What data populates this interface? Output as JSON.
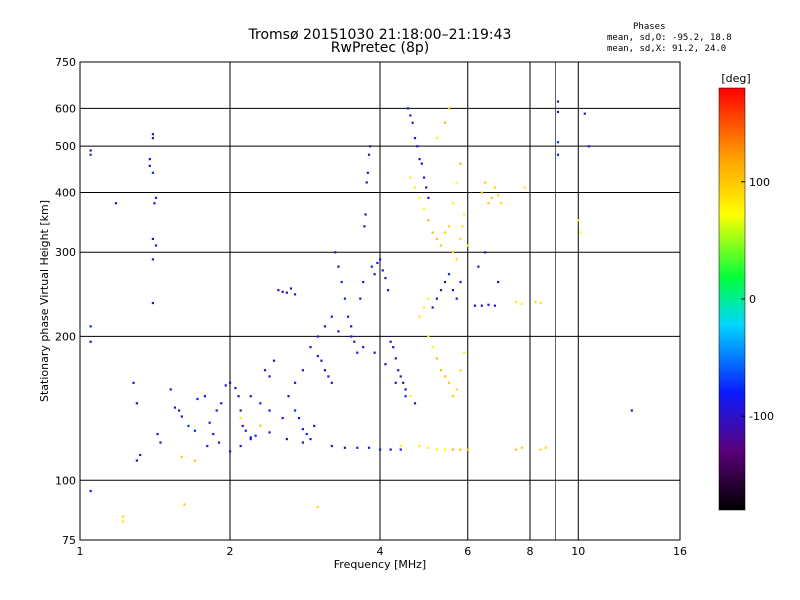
{
  "chart_data": {
    "type": "scatter",
    "title": "Tromsø 20151030 21:18:00–21:19:43",
    "subtitle": "RwPretec (8p)",
    "xlabel": "Frequency [MHz]",
    "ylabel": "Stationary phase Virtual Height [km]",
    "x_scale": "log",
    "y_scale": "log",
    "xlim": [
      1,
      16
    ],
    "ylim": [
      75,
      750
    ],
    "x_ticks": [
      1,
      2,
      4,
      6,
      8,
      10,
      16
    ],
    "x_tick_labels": [
      "1",
      "2",
      "4",
      "6",
      "8",
      "10",
      "16"
    ],
    "x_major_grid": [
      2,
      4,
      6,
      8,
      10
    ],
    "x_minor_grid": [
      9
    ],
    "y_ticks": [
      75,
      100,
      200,
      300,
      400,
      500,
      600,
      750
    ],
    "y_tick_labels": [
      "75",
      "100",
      "200",
      "300",
      "400",
      "500",
      "600",
      "750"
    ],
    "y_grid": [
      100,
      200,
      300,
      400,
      500,
      600
    ],
    "grid": true,
    "stats": {
      "heading": "Phases",
      "o_line": "mean, sd,O:  -95.2, 18.8",
      "x_line": "mean, sd,X:   91.2, 24.0"
    },
    "colorbar": {
      "label": "[deg]",
      "range": [
        -180,
        180
      ],
      "ticks": [
        100,
        0,
        -100
      ],
      "tick_labels": [
        "100",
        "0",
        "-100"
      ]
    },
    "series": [
      {
        "name": "O",
        "color_phase": -95,
        "points": [
          [
            1.05,
            490
          ],
          [
            1.05,
            480
          ],
          [
            1.05,
            210
          ],
          [
            1.05,
            195
          ],
          [
            1.05,
            95
          ],
          [
            1.18,
            380
          ],
          [
            1.28,
            160
          ],
          [
            1.3,
            145
          ],
          [
            1.3,
            110
          ],
          [
            1.32,
            113
          ],
          [
            1.4,
            530
          ],
          [
            1.4,
            520
          ],
          [
            1.38,
            470
          ],
          [
            1.38,
            455
          ],
          [
            1.4,
            440
          ],
          [
            1.42,
            390
          ],
          [
            1.41,
            380
          ],
          [
            1.4,
            320
          ],
          [
            1.42,
            310
          ],
          [
            1.4,
            290
          ],
          [
            1.4,
            235
          ],
          [
            1.43,
            125
          ],
          [
            1.45,
            120
          ],
          [
            1.52,
            155
          ],
          [
            1.55,
            142
          ],
          [
            1.58,
            140
          ],
          [
            1.6,
            136
          ],
          [
            1.65,
            130
          ],
          [
            1.7,
            127
          ],
          [
            1.72,
            148
          ],
          [
            1.78,
            150
          ],
          [
            1.82,
            132
          ],
          [
            1.85,
            125
          ],
          [
            1.88,
            140
          ],
          [
            1.92,
            145
          ],
          [
            1.96,
            158
          ],
          [
            2.0,
            160
          ],
          [
            2.05,
            156
          ],
          [
            2.08,
            150
          ],
          [
            2.1,
            140
          ],
          [
            2.12,
            130
          ],
          [
            2.15,
            127
          ],
          [
            2.2,
            122
          ],
          [
            2.25,
            124
          ],
          [
            2.3,
            130
          ],
          [
            2.35,
            170
          ],
          [
            2.4,
            165
          ],
          [
            2.45,
            178
          ],
          [
            2.5,
            250
          ],
          [
            2.55,
            248
          ],
          [
            2.6,
            247
          ],
          [
            2.65,
            252
          ],
          [
            2.7,
            245
          ],
          [
            2.62,
            150
          ],
          [
            2.7,
            140
          ],
          [
            2.75,
            135
          ],
          [
            2.8,
            128
          ],
          [
            2.85,
            125
          ],
          [
            2.9,
            122
          ],
          [
            2.95,
            130
          ],
          [
            3.0,
            182
          ],
          [
            3.05,
            178
          ],
          [
            3.1,
            170
          ],
          [
            3.15,
            165
          ],
          [
            3.2,
            160
          ],
          [
            3.25,
            300
          ],
          [
            3.3,
            280
          ],
          [
            3.35,
            260
          ],
          [
            3.4,
            240
          ],
          [
            3.45,
            220
          ],
          [
            3.5,
            210
          ],
          [
            3.55,
            195
          ],
          [
            3.6,
            185
          ],
          [
            3.65,
            240
          ],
          [
            3.7,
            260
          ],
          [
            3.72,
            340
          ],
          [
            3.74,
            360
          ],
          [
            3.76,
            420
          ],
          [
            3.78,
            440
          ],
          [
            3.8,
            480
          ],
          [
            3.82,
            500
          ],
          [
            3.85,
            280
          ],
          [
            3.9,
            270
          ],
          [
            3.95,
            285
          ],
          [
            4.0,
            290
          ],
          [
            4.05,
            275
          ],
          [
            4.1,
            265
          ],
          [
            4.15,
            250
          ],
          [
            4.2,
            195
          ],
          [
            4.25,
            190
          ],
          [
            4.3,
            180
          ],
          [
            4.35,
            170
          ],
          [
            4.4,
            165
          ],
          [
            4.45,
            160
          ],
          [
            4.5,
            150
          ],
          [
            4.55,
            600
          ],
          [
            4.6,
            580
          ],
          [
            4.65,
            560
          ],
          [
            4.7,
            520
          ],
          [
            4.75,
            500
          ],
          [
            4.8,
            470
          ],
          [
            4.85,
            460
          ],
          [
            4.9,
            430
          ],
          [
            4.95,
            410
          ],
          [
            5.0,
            390
          ],
          [
            3.2,
            118
          ],
          [
            3.4,
            117
          ],
          [
            3.6,
            117
          ],
          [
            3.8,
            117
          ],
          [
            4.0,
            116
          ],
          [
            4.2,
            116
          ],
          [
            4.4,
            116
          ],
          [
            3.3,
            205
          ],
          [
            3.5,
            200
          ],
          [
            3.7,
            190
          ],
          [
            3.9,
            185
          ],
          [
            4.1,
            175
          ],
          [
            4.3,
            160
          ],
          [
            4.5,
            155
          ],
          [
            4.7,
            145
          ],
          [
            2.2,
            150
          ],
          [
            2.3,
            145
          ],
          [
            2.4,
            140
          ],
          [
            2.55,
            135
          ],
          [
            2.7,
            160
          ],
          [
            2.8,
            170
          ],
          [
            2.9,
            190
          ],
          [
            3.0,
            200
          ],
          [
            3.1,
            210
          ],
          [
            3.2,
            220
          ],
          [
            5.1,
            230
          ],
          [
            5.2,
            240
          ],
          [
            5.3,
            250
          ],
          [
            5.4,
            260
          ],
          [
            5.5,
            270
          ],
          [
            5.6,
            250
          ],
          [
            5.7,
            240
          ],
          [
            5.8,
            260
          ],
          [
            6.2,
            232
          ],
          [
            6.4,
            232
          ],
          [
            6.6,
            233
          ],
          [
            6.8,
            232
          ],
          [
            6.9,
            260
          ],
          [
            6.3,
            280
          ],
          [
            6.5,
            300
          ],
          [
            9.1,
            620
          ],
          [
            9.1,
            590
          ],
          [
            9.1,
            510
          ],
          [
            9.1,
            480
          ],
          [
            10.3,
            585
          ],
          [
            10.5,
            500
          ],
          [
            12.8,
            140
          ],
          [
            1.8,
            118
          ],
          [
            1.9,
            120
          ],
          [
            2.0,
            115
          ],
          [
            2.1,
            118
          ],
          [
            2.2,
            123
          ],
          [
            2.4,
            126
          ],
          [
            2.6,
            122
          ],
          [
            2.8,
            120
          ]
        ]
      },
      {
        "name": "X",
        "color_phase": 90,
        "points": [
          [
            4.6,
            430
          ],
          [
            4.7,
            410
          ],
          [
            4.8,
            390
          ],
          [
            4.9,
            370
          ],
          [
            5.0,
            350
          ],
          [
            5.1,
            330
          ],
          [
            5.2,
            320
          ],
          [
            5.3,
            310
          ],
          [
            5.4,
            330
          ],
          [
            5.5,
            340
          ],
          [
            5.6,
            300
          ],
          [
            5.7,
            290
          ],
          [
            5.8,
            320
          ],
          [
            5.85,
            340
          ],
          [
            5.9,
            360
          ],
          [
            6.0,
            310
          ],
          [
            5.0,
            200
          ],
          [
            5.1,
            190
          ],
          [
            5.2,
            180
          ],
          [
            5.3,
            170
          ],
          [
            5.4,
            165
          ],
          [
            5.5,
            160
          ],
          [
            5.6,
            150
          ],
          [
            5.7,
            155
          ],
          [
            5.8,
            170
          ],
          [
            5.9,
            185
          ],
          [
            4.8,
            220
          ],
          [
            4.9,
            230
          ],
          [
            5.0,
            240
          ],
          [
            5.6,
            380
          ],
          [
            5.7,
            420
          ],
          [
            5.8,
            460
          ],
          [
            6.4,
            400
          ],
          [
            6.5,
            420
          ],
          [
            6.6,
            380
          ],
          [
            6.7,
            390
          ],
          [
            6.8,
            410
          ],
          [
            6.9,
            395
          ],
          [
            7.0,
            380
          ],
          [
            7.8,
            410
          ],
          [
            4.8,
            118
          ],
          [
            5.0,
            117
          ],
          [
            5.2,
            116
          ],
          [
            5.4,
            116
          ],
          [
            5.6,
            116
          ],
          [
            5.8,
            116
          ],
          [
            6.0,
            116
          ],
          [
            7.5,
            116
          ],
          [
            7.7,
            117
          ],
          [
            8.4,
            116
          ],
          [
            8.6,
            117
          ],
          [
            8.2,
            236
          ],
          [
            8.4,
            235
          ],
          [
            7.5,
            236
          ],
          [
            7.7,
            234
          ],
          [
            10.0,
            350
          ],
          [
            10.1,
            330
          ],
          [
            5.2,
            520
          ],
          [
            5.4,
            560
          ],
          [
            5.5,
            600
          ],
          [
            1.6,
            112
          ],
          [
            1.7,
            110
          ],
          [
            1.62,
            89
          ],
          [
            1.22,
            84
          ],
          [
            1.22,
            82
          ],
          [
            3.0,
            88
          ],
          [
            2.1,
            135
          ],
          [
            2.3,
            130
          ],
          [
            4.4,
            118
          ],
          [
            4.6,
            150
          ]
        ]
      }
    ]
  }
}
